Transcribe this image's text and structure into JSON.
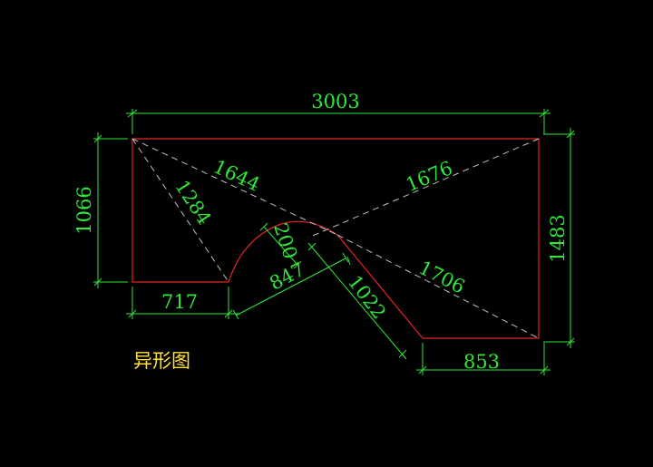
{
  "drawing": {
    "caption": "异形图",
    "colors": {
      "background": "#000000",
      "outline": "#e32626",
      "dimension": "#2ee83a",
      "diagonal": "#bfbfbf",
      "caption": "#ffe033"
    },
    "dimensions": {
      "overall_width": "3003",
      "left_height": "1066",
      "right_height": "1483",
      "bottom_left": "717",
      "bottom_right": "853",
      "diag_tl_to_arc": "1644",
      "diag_tl_to_notch": "1284",
      "diag_tr_to_arc": "1676",
      "diag_arc_to_br": "1706",
      "arc_chord": "847",
      "arc_rise": "200",
      "slant_edge": "1022"
    }
  }
}
